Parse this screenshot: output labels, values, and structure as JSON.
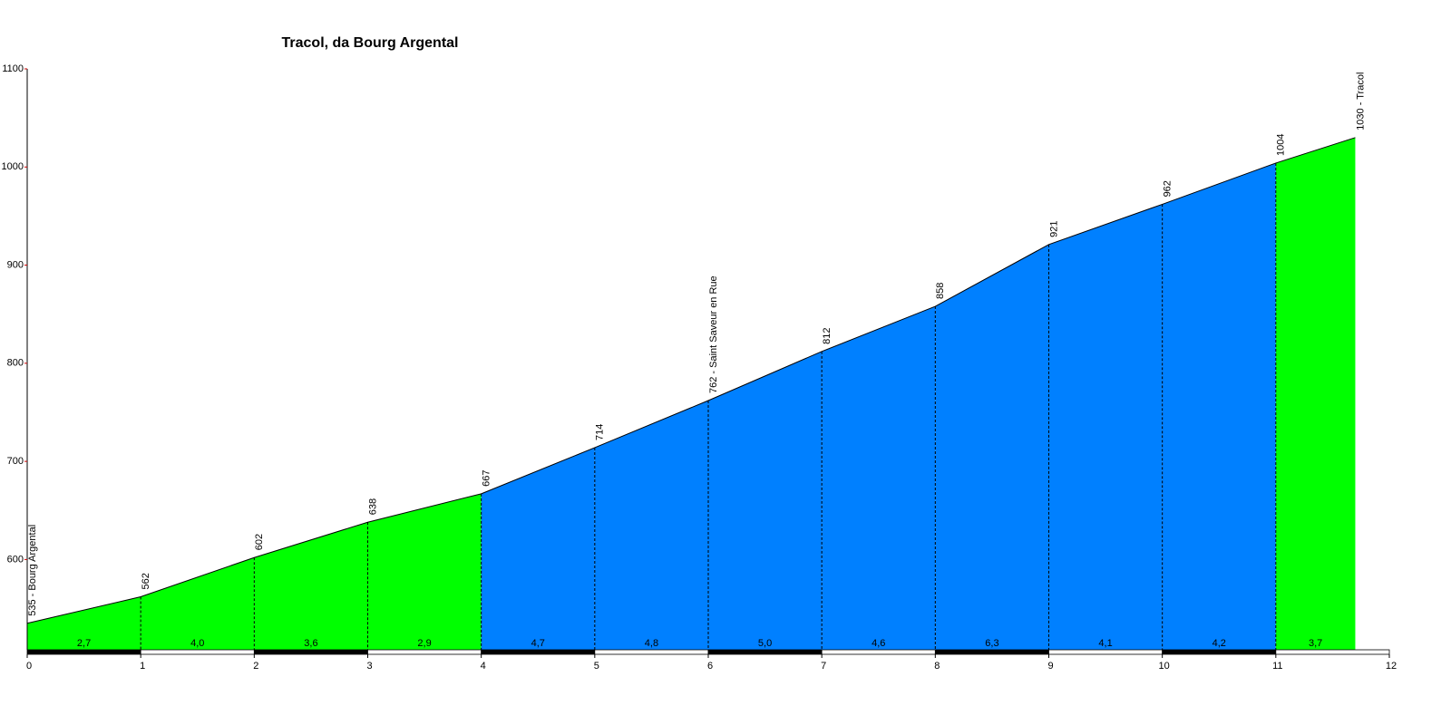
{
  "chart_data": {
    "type": "area",
    "title": "Tracol, da Bourg Argental",
    "x": [
      0,
      1,
      2,
      3,
      4,
      5,
      6,
      7,
      8,
      9,
      10,
      11,
      11.7
    ],
    "series": [
      {
        "values": [
          535,
          562,
          602,
          638,
          667,
          714,
          762,
          812,
          858,
          921,
          962,
          1004,
          1030
        ],
        "value_labels": [
          "535 - Bourg Argental",
          "562",
          "602",
          "638",
          "667",
          "714",
          "762 - Saint Saveur en Rue",
          "812",
          "858",
          "921",
          "962",
          "1004",
          "1030 - Tracol"
        ]
      }
    ],
    "gradients": [
      2.7,
      4.0,
      3.6,
      2.9,
      4.7,
      4.8,
      5.0,
      4.6,
      6.3,
      4.1,
      4.2,
      3.7
    ],
    "gradient_labels": [
      "2,7",
      "4,0",
      "3,6",
      "2,9",
      "4,7",
      "4,8",
      "5,0",
      "4,6",
      "6,3",
      "4,1",
      "4,2",
      "3,7"
    ],
    "segment_colors": [
      "#00ff00",
      "#00ff00",
      "#00ff00",
      "#00ff00",
      "#0080ff",
      "#0080ff",
      "#0080ff",
      "#0080ff",
      "#0080ff",
      "#0080ff",
      "#0080ff",
      "#00ff00"
    ],
    "xlim": [
      0,
      12
    ],
    "xticks": [
      0,
      1,
      2,
      3,
      4,
      5,
      6,
      7,
      8,
      9,
      10,
      11,
      12
    ],
    "ylim": [
      508,
      1100
    ],
    "yticks": [
      600,
      700,
      800,
      900,
      1000,
      1100
    ]
  }
}
